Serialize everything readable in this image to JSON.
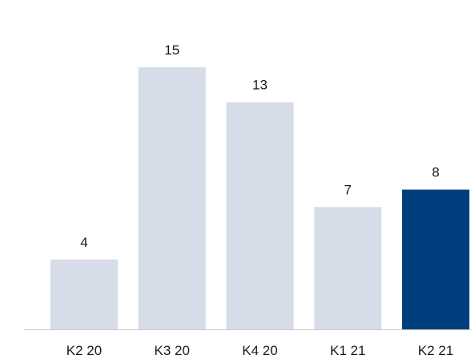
{
  "chart_data": {
    "type": "bar",
    "title": "",
    "xlabel": "",
    "ylabel": "",
    "categories": [
      "K2 20",
      "K3 20",
      "K4 20",
      "K1 21",
      "K2 21"
    ],
    "values": [
      4,
      15,
      13,
      7,
      8
    ],
    "value_labels": [
      "4",
      "15",
      "13",
      "7",
      "8"
    ],
    "ylim": [
      0,
      15
    ],
    "grid": false,
    "legend": "none",
    "colors": {
      "default_bar": "#d6dde9",
      "highlight_bar": "#003f7d",
      "axis_line": "#c8c8c8"
    },
    "highlight_index": 4
  }
}
